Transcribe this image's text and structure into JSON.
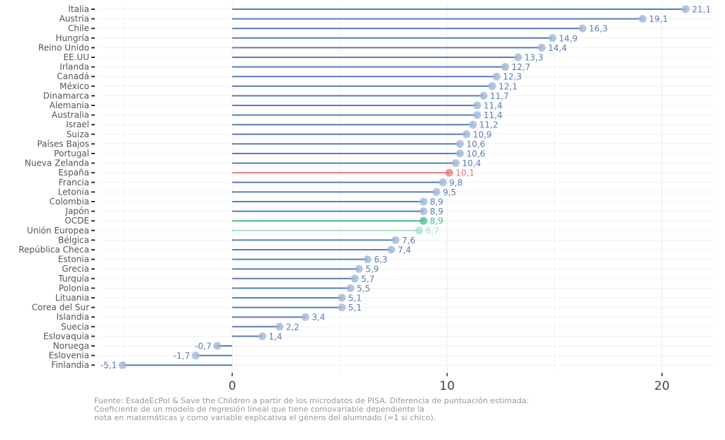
{
  "chart_data": {
    "type": "lollipop",
    "orientation": "horizontal",
    "categories": [
      "Italia",
      "Austria",
      "Chile",
      "Hungría",
      "Reino Unido",
      "EE.UU",
      "Irlanda",
      "Canadá",
      "México",
      "Dinamarca",
      "Alemania",
      "Australia",
      "Israel",
      "Suiza",
      "Países Bajos",
      "Portugal",
      "Nueva Zelanda",
      "España",
      "Francia",
      "Letonia",
      "Colombia",
      "Japón",
      "OCDE",
      "Unión Europea",
      "Bélgica",
      "República Checa",
      "Estonia",
      "Grecia",
      "Turquía",
      "Polonia",
      "Lituania",
      "Corea del Sur",
      "Islandia",
      "Suecia",
      "Eslovaquia",
      "Noruega",
      "Eslovenia",
      "Finlandia"
    ],
    "values": [
      21.1,
      19.1,
      16.3,
      14.9,
      14.4,
      13.3,
      12.7,
      12.3,
      12.1,
      11.7,
      11.4,
      11.4,
      11.2,
      10.9,
      10.6,
      10.6,
      10.4,
      10.1,
      9.8,
      9.5,
      8.9,
      8.9,
      8.9,
      8.7,
      7.6,
      7.4,
      6.3,
      5.9,
      5.7,
      5.5,
      5.1,
      5.1,
      3.4,
      2.2,
      1.4,
      -0.7,
      -1.7,
      -5.1
    ],
    "value_labels": [
      "21,1",
      "19,1",
      "16,3",
      "14,9",
      "14,4",
      "13,3",
      "12,7",
      "12,3",
      "12,1",
      "11,7",
      "11,4",
      "11,4",
      "11,2",
      "10,9",
      "10,6",
      "10,6",
      "10,4",
      "10,1",
      "9,8",
      "9,5",
      "8,9",
      "8,9",
      "8,9",
      "8,7",
      "7,6",
      "7,4",
      "6,3",
      "5,9",
      "5,7",
      "5,5",
      "5,1",
      "5,1",
      "3,4",
      "2,2",
      "1,4",
      "-0,7",
      "-1,7",
      "-5,1"
    ],
    "highlight": {
      "España": "#e8797a",
      "OCDE": "#3fbf8f",
      "Unión Europea": "#a6e0c6"
    },
    "xlim": [
      -5.8,
      22.6
    ],
    "xticks": [
      0,
      10,
      20
    ],
    "xtick_labels": [
      "0",
      "10",
      "20"
    ],
    "grid": true,
    "xlabel": "",
    "ylabel": ""
  },
  "colors": {
    "default_line": "#5a7db5",
    "default_point": "#9fb8da"
  },
  "caption": [
    "Fuente: EsadeEcPol & Save the Children a partir de los microdatos de PISA. Diferencia de puntuación estimada:",
    "Coeficiente de un modelo de regresión lineal que tiene comovariable dependiente la",
    "nota en matemáticas y como variable explicativa el género del alumnado (=1 si chico)."
  ]
}
